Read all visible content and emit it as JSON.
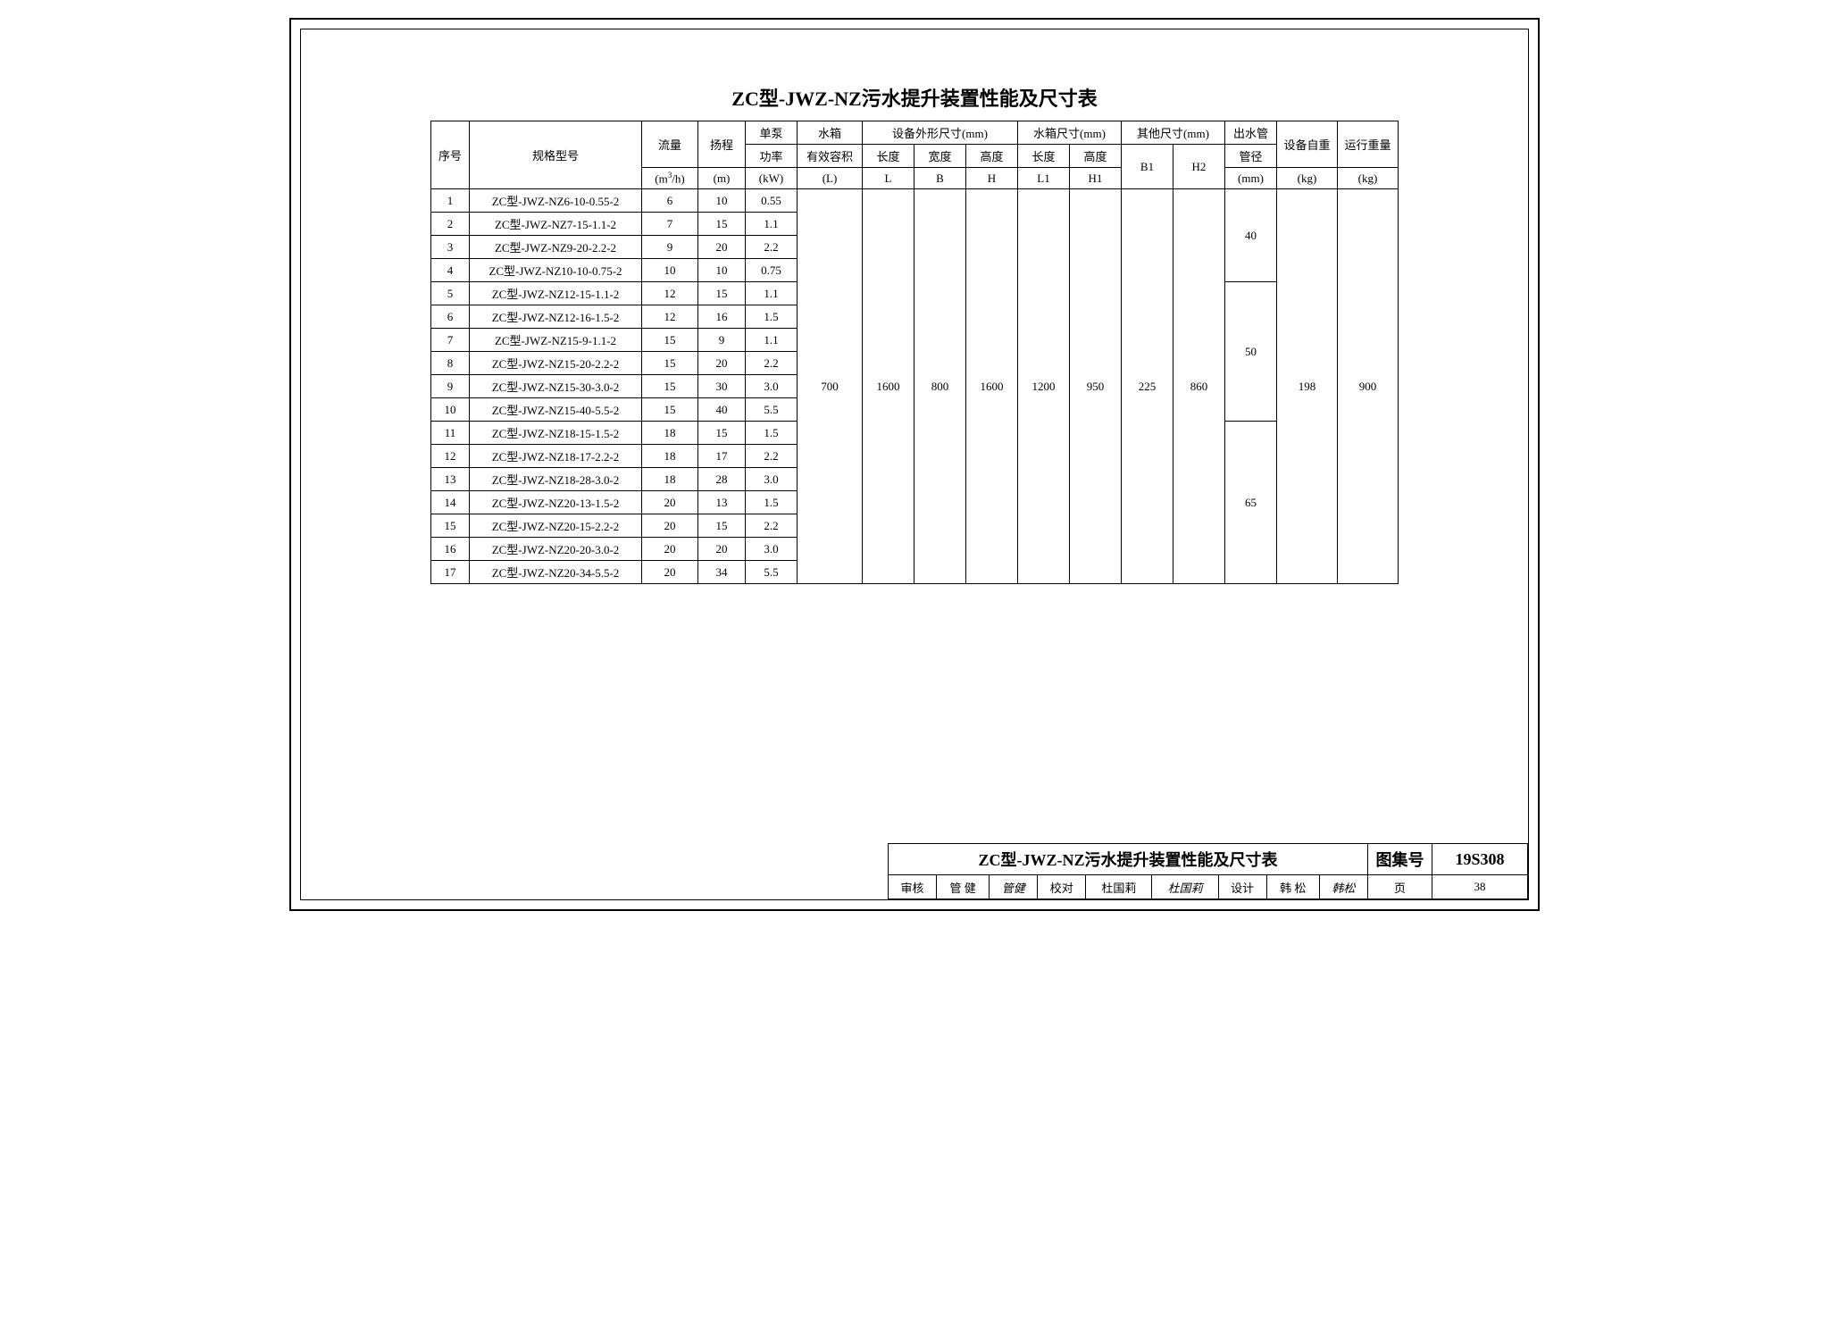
{
  "title": "ZC型-JWZ-NZ污水提升装置性能及尺寸表",
  "headers": {
    "seq": "序号",
    "model": "规格型号",
    "flow": "流量",
    "flow_unit": "(m",
    "flow_unit2": "/h)",
    "head": "扬程",
    "head_unit": "(m)",
    "power": "单泵",
    "power2": "功率",
    "power_unit": "(kW)",
    "tank": "水箱",
    "tank2": "有效容积",
    "tank_unit": "(L)",
    "equip_dim": "设备外形尺寸(mm)",
    "tank_dim": "水箱尺寸(mm)",
    "other_dim": "其他尺寸(mm)",
    "len": "长度",
    "len_sym": "L",
    "wid": "宽度",
    "wid_sym": "B",
    "hei": "高度",
    "hei_sym": "H",
    "len1": "长度",
    "len1_sym": "L1",
    "hei1": "高度",
    "hei1_sym": "H1",
    "b1": "B1",
    "h2": "H2",
    "outlet": "出水管",
    "outlet2": "管径",
    "outlet_unit": "(mm)",
    "self_w": "设备自重",
    "self_w_unit": "(kg)",
    "run_w": "运行重量",
    "run_w_unit": "(kg)"
  },
  "rows": [
    {
      "seq": "1",
      "model": "ZC型-JWZ-NZ6-10-0.55-2",
      "flow": "6",
      "head": "10",
      "power": "0.55"
    },
    {
      "seq": "2",
      "model": "ZC型-JWZ-NZ7-15-1.1-2",
      "flow": "7",
      "head": "15",
      "power": "1.1"
    },
    {
      "seq": "3",
      "model": "ZC型-JWZ-NZ9-20-2.2-2",
      "flow": "9",
      "head": "20",
      "power": "2.2"
    },
    {
      "seq": "4",
      "model": "ZC型-JWZ-NZ10-10-0.75-2",
      "flow": "10",
      "head": "10",
      "power": "0.75"
    },
    {
      "seq": "5",
      "model": "ZC型-JWZ-NZ12-15-1.1-2",
      "flow": "12",
      "head": "15",
      "power": "1.1"
    },
    {
      "seq": "6",
      "model": "ZC型-JWZ-NZ12-16-1.5-2",
      "flow": "12",
      "head": "16",
      "power": "1.5"
    },
    {
      "seq": "7",
      "model": "ZC型-JWZ-NZ15-9-1.1-2",
      "flow": "15",
      "head": "9",
      "power": "1.1"
    },
    {
      "seq": "8",
      "model": "ZC型-JWZ-NZ15-20-2.2-2",
      "flow": "15",
      "head": "20",
      "power": "2.2"
    },
    {
      "seq": "9",
      "model": "ZC型-JWZ-NZ15-30-3.0-2",
      "flow": "15",
      "head": "30",
      "power": "3.0"
    },
    {
      "seq": "10",
      "model": "ZC型-JWZ-NZ15-40-5.5-2",
      "flow": "15",
      "head": "40",
      "power": "5.5"
    },
    {
      "seq": "11",
      "model": "ZC型-JWZ-NZ18-15-1.5-2",
      "flow": "18",
      "head": "15",
      "power": "1.5"
    },
    {
      "seq": "12",
      "model": "ZC型-JWZ-NZ18-17-2.2-2",
      "flow": "18",
      "head": "17",
      "power": "2.2"
    },
    {
      "seq": "13",
      "model": "ZC型-JWZ-NZ18-28-3.0-2",
      "flow": "18",
      "head": "28",
      "power": "3.0"
    },
    {
      "seq": "14",
      "model": "ZC型-JWZ-NZ20-13-1.5-2",
      "flow": "20",
      "head": "13",
      "power": "1.5"
    },
    {
      "seq": "15",
      "model": "ZC型-JWZ-NZ20-15-2.2-2",
      "flow": "20",
      "head": "15",
      "power": "2.2"
    },
    {
      "seq": "16",
      "model": "ZC型-JWZ-NZ20-20-3.0-2",
      "flow": "20",
      "head": "20",
      "power": "3.0"
    },
    {
      "seq": "17",
      "model": "ZC型-JWZ-NZ20-34-5.5-2",
      "flow": "20",
      "head": "34",
      "power": "5.5"
    }
  ],
  "merged": {
    "tank_vol": "700",
    "eq_L": "1600",
    "eq_B": "800",
    "eq_H": "1600",
    "tk_L1": "1200",
    "tk_H1": "950",
    "ot_B1": "225",
    "ot_H2": "860",
    "self_w": "198",
    "run_w": "900"
  },
  "outlet_groups": [
    {
      "rows": 4,
      "value": "40"
    },
    {
      "rows": 6,
      "value": "50"
    },
    {
      "rows": 7,
      "value": "65"
    }
  ],
  "titleblock": {
    "main": "ZC型-JWZ-NZ污水提升装置性能及尺寸表",
    "atlas_label": "图集号",
    "atlas_no": "19S308",
    "page_label": "页",
    "page_no": "38",
    "review_label": "审核",
    "review_name": "管 健",
    "review_sig": "管健",
    "check_label": "校对",
    "check_name": "杜国莉",
    "check_sig": "杜国莉",
    "design_label": "设计",
    "design_name": "韩 松",
    "design_sig": "韩松"
  }
}
